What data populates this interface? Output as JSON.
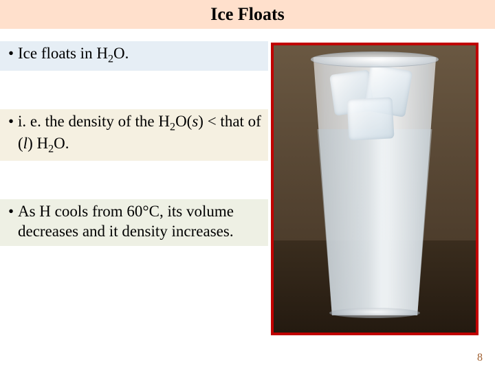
{
  "title": "Ice Floats",
  "bullets": [
    {
      "bg": "bg-blue",
      "html": "Ice floats in H<span class='sub'>2</span>O."
    },
    {
      "bg": "bg-cream",
      "html": "i. e. the density of the H<span class='sub'>2</span>O(<span class='ital'>s</span>) &lt; that of (<span class='ital'>l</span>) H<span class='sub'>2</span>O."
    },
    {
      "bg": "bg-olive",
      "html": "As H cools from 60°C, its volume decreases and it density increases."
    }
  ],
  "page_number": "8",
  "colors": {
    "title_bg": "#ffe0cc",
    "frame_border": "#c00000",
    "page_num_color": "#a06030"
  }
}
